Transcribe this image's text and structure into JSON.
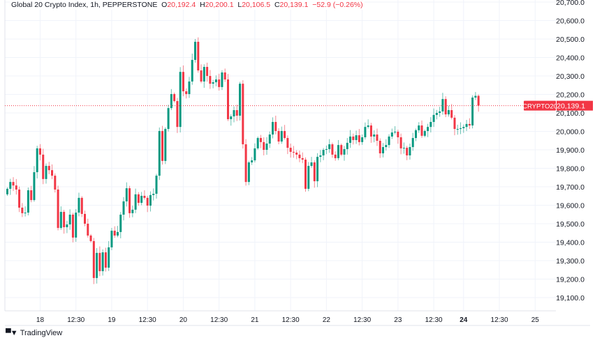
{
  "header": {
    "symbol_title": "Global 20 Crypto Index, 1h, PEPPERSTONE",
    "open_label": "O",
    "open": "20,192.4",
    "high_label": "H",
    "high": "20,200.1",
    "low_label": "L",
    "low": "20,106.5",
    "close_label": "C",
    "close": "20,139.1",
    "change": "−52.9 (−0.26%)"
  },
  "footer": {
    "brand": "TradingView",
    "logo": "TV"
  },
  "colors": {
    "up": "#089981",
    "down": "#f23645",
    "grid": "#f0f3fa",
    "text": "#131722"
  },
  "chart_data": {
    "type": "candlestick",
    "title": "Global 20 Crypto Index, 1h, PEPPERSTONE",
    "ylim": [
      19050,
      20750
    ],
    "y_ticks": [
      19100,
      19200,
      19300,
      19400,
      19500,
      19600,
      19700,
      19800,
      19900,
      20000,
      20100,
      20200,
      20300,
      20400,
      20500,
      20600,
      20700
    ],
    "y_tick_labels": [
      "19,100.0",
      "19,200.0",
      "19,300.0",
      "19,400.0",
      "19,500.0",
      "19,600.0",
      "19,700.0",
      "19,800.0",
      "19,900.0",
      "20,000.0",
      "20,100.0",
      "20,200.0",
      "20,300.0",
      "20,400.0",
      "20,500.0",
      "20,600.0",
      "20,700.0"
    ],
    "x_ticks": [
      {
        "label": "18",
        "bar": 11,
        "bold": false
      },
      {
        "label": "12:30",
        "bar": 23,
        "bold": false
      },
      {
        "label": "19",
        "bar": 35,
        "bold": false
      },
      {
        "label": "12:30",
        "bar": 47,
        "bold": false
      },
      {
        "label": "20",
        "bar": 59,
        "bold": false
      },
      {
        "label": "12:30",
        "bar": 71,
        "bold": false
      },
      {
        "label": "21",
        "bar": 83,
        "bold": false
      },
      {
        "label": "12:30",
        "bar": 95,
        "bold": false
      },
      {
        "label": "22",
        "bar": 107,
        "bold": false
      },
      {
        "label": "12:30",
        "bar": 119,
        "bold": false
      },
      {
        "label": "23",
        "bar": 131,
        "bold": false
      },
      {
        "label": "12:30",
        "bar": 143,
        "bold": false
      },
      {
        "label": "24",
        "bar": 153,
        "bold": true
      },
      {
        "label": "12:30",
        "bar": 165,
        "bold": false
      },
      {
        "label": "25",
        "bar": 177,
        "bold": false
      }
    ],
    "first_open": 19659,
    "closes": [
      19689,
      19726,
      19707,
      19685,
      19587,
      19557,
      19560,
      19681,
      19628,
      19779,
      19908,
      19874,
      19742,
      19813,
      19790,
      19760,
      19685,
      19477,
      19564,
      19481,
      19496,
      19549,
      19425,
      19560,
      19640,
      19553,
      19500,
      19436,
      19406,
      19206,
      19342,
      19243,
      19345,
      19262,
      19372,
      19462,
      19436,
      19455,
      19549,
      19621,
      19692,
      19557,
      19576,
      19659,
      19613,
      19651,
      19640,
      19598,
      19655,
      19662,
      19760,
      20002,
      19840,
      20013,
      20126,
      20202,
      20164,
      20024,
      20322,
      20217,
      20202,
      20270,
      20387,
      20485,
      20330,
      20270,
      20349,
      20300,
      20258,
      20266,
      20281,
      20240,
      20319,
      20281,
      20066,
      20081,
      20115,
      20085,
      20258,
      19930,
      19726,
      19832,
      19843,
      19908,
      19964,
      19942,
      19900,
      19934,
      19983,
      20051,
      20002,
      19945,
      20002,
      19964,
      19911,
      19889,
      19885,
      19874,
      19855,
      19847,
      19689,
      19813,
      19832,
      19730,
      19862,
      19870,
      19900,
      19904,
      19930,
      19874,
      19855,
      19926,
      19874,
      19904,
      19938,
      19972,
      19953,
      19979,
      19942,
      19968,
      20024,
      20032,
      19972,
      19983,
      19949,
      19881,
      19915,
      19926,
      19972,
      19994,
      19998,
      19968,
      19908,
      19911,
      19870,
      19915,
      19964,
      20006,
      20032,
      19976,
      20002,
      20024,
      20051,
      20089,
      20100,
      20108,
      20175,
      20092,
      20115,
      20074,
      20013,
      20013,
      20017,
      20024,
      20040,
      20032,
      20183,
      20192.4,
      20139.1
    ],
    "last_bar": {
      "open": 20192.4,
      "high": 20200.1,
      "low": 20106.5,
      "close": 20139.1
    },
    "current_price": 20139.1,
    "current_price_label": "20,139.1",
    "symbol_tag": "CRYPTO20",
    "grid": true
  }
}
